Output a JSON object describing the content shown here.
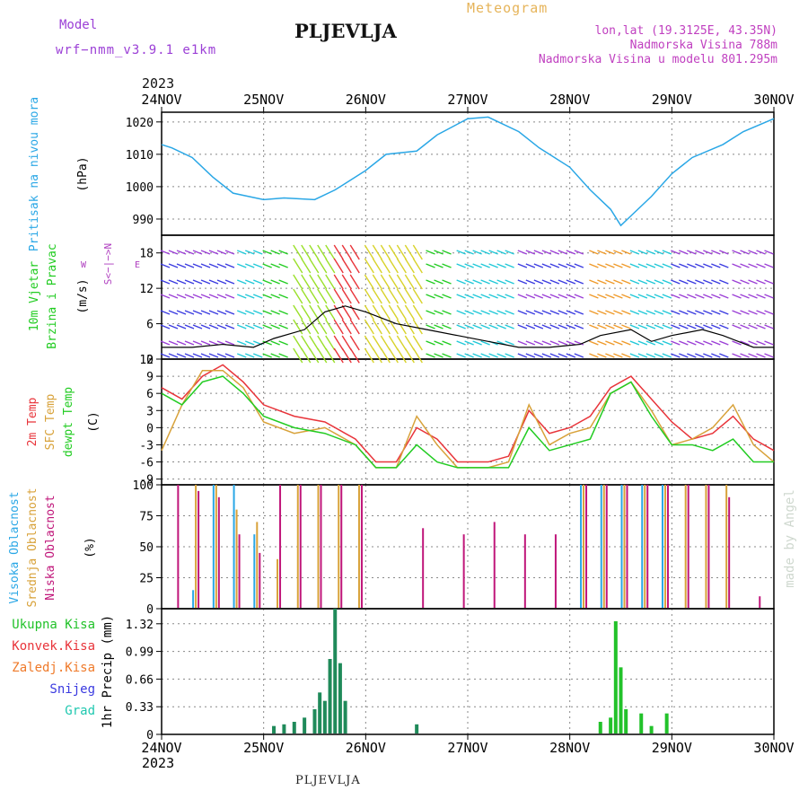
{
  "header": {
    "model_label": "Model",
    "model_run": "wrf−nmm_v3.9.1  e1km",
    "station": "PLJEVLJA",
    "product": "Meteogram",
    "lonlat": "lon,lat (19.3125E, 43.35N)",
    "elevation": "Nadmorska Visina 788m",
    "model_elevation": "Nadmorska Visina u modelu 801.295m",
    "year": "2023"
  },
  "footer": {
    "station": "PLJEVLJA",
    "year": "2023",
    "credit": "made by Angel"
  },
  "colors": {
    "pressure": "#2aa7e6",
    "temp2m": "#e8343a",
    "sfc": "#d8a23a",
    "dewpt": "#22cc22",
    "cloud_high": "#2aa7e6",
    "cloud_mid": "#d8a23a",
    "cloud_low": "#c0167a",
    "total_precip": "#22c22a",
    "conv_precip": "#e8343a",
    "frozen": "#ef7a2a",
    "snow": "#3a3ae0",
    "hail": "#20c8b0",
    "wind_speed": "#000000"
  },
  "chart_data": [
    {
      "panel": "pressure",
      "type": "line",
      "ylabel_lines": [
        "Pritisak na nivou mora",
        "(hPa)"
      ],
      "x_ticks": [
        "24NOV",
        "25NOV",
        "26NOV",
        "27NOV",
        "28NOV",
        "29NOV",
        "30NOV"
      ],
      "ylim": [
        985,
        1023
      ],
      "yticks": [
        990,
        1000,
        1010,
        1020
      ],
      "x_day": [
        0,
        0.1,
        0.3,
        0.5,
        0.7,
        1.0,
        1.2,
        1.5,
        1.7,
        2.0,
        2.2,
        2.5,
        2.7,
        3.0,
        3.2,
        3.5,
        3.7,
        4.0,
        4.2,
        4.4,
        4.5,
        4.6,
        4.8,
        5.0,
        5.2,
        5.5,
        5.7,
        6.0
      ],
      "values": [
        1013,
        1012,
        1009,
        1003,
        998,
        996,
        996.5,
        996,
        999,
        1005,
        1010,
        1011,
        1016,
        1021,
        1021.5,
        1017,
        1012,
        1006,
        999,
        993,
        988,
        991,
        997,
        1004,
        1009,
        1013,
        1017,
        1021
      ]
    },
    {
      "panel": "wind",
      "type": "line",
      "ylabel_lines": [
        "10m Vjetar",
        "Brzina i Pravac",
        "(m/s)"
      ],
      "compass": {
        "n": "N",
        "s": "S",
        "e": "E",
        "w": "W"
      },
      "ylim": [
        0,
        21
      ],
      "yticks": [
        0,
        6,
        12,
        18
      ],
      "x_day": [
        0,
        0.3,
        0.6,
        0.9,
        1.1,
        1.4,
        1.6,
        1.8,
        2.0,
        2.3,
        2.6,
        2.9,
        3.2,
        3.5,
        3.8,
        4.1,
        4.3,
        4.6,
        4.8,
        5.0,
        5.3,
        5.5,
        5.8,
        6.0
      ],
      "values": [
        2,
        2,
        2.5,
        2,
        3.5,
        5,
        8,
        9,
        8,
        6,
        5,
        4,
        3,
        2,
        2,
        2.5,
        4,
        5,
        3,
        4,
        5,
        4,
        2,
        2
      ]
    },
    {
      "panel": "temperature",
      "type": "line",
      "ylabel_lines": [
        "2m Temp",
        "SFC Temp",
        "dewpt Temp",
        "(C)"
      ],
      "ylim": [
        -10,
        12
      ],
      "yticks": [
        -9,
        -6,
        -3,
        0,
        3,
        6,
        9,
        12
      ],
      "x_day": [
        0,
        0.2,
        0.4,
        0.6,
        0.8,
        1.0,
        1.3,
        1.6,
        1.9,
        2.1,
        2.3,
        2.5,
        2.7,
        2.9,
        3.2,
        3.4,
        3.6,
        3.8,
        4.0,
        4.2,
        4.4,
        4.6,
        4.8,
        5.0,
        5.2,
        5.4,
        5.6,
        5.8,
        6.0
      ],
      "series": [
        {
          "name": "2m",
          "values": [
            7,
            5,
            9,
            11,
            8,
            4,
            2,
            1,
            -2,
            -6,
            -6,
            0,
            -2,
            -6,
            -6,
            -5,
            3,
            -1,
            0,
            2,
            7,
            9,
            5,
            1,
            -2,
            -1,
            2,
            -2,
            -4
          ]
        },
        {
          "name": "SFC",
          "values": [
            -4,
            4,
            10,
            10,
            7,
            1,
            -1,
            0,
            -3,
            -7,
            -7,
            2,
            -3,
            -7,
            -7,
            -6,
            4,
            -3,
            -1,
            0,
            6,
            8,
            3,
            -3,
            -2,
            0,
            4,
            -3,
            -6
          ]
        },
        {
          "name": "dewpt",
          "values": [
            6,
            4,
            8,
            9,
            6,
            2,
            0,
            -1,
            -3,
            -7,
            -7,
            -3,
            -6,
            -7,
            -7,
            -7,
            0,
            -4,
            -3,
            -2,
            6,
            8,
            2,
            -3,
            -3,
            -4,
            -2,
            -6,
            -6
          ]
        }
      ]
    },
    {
      "panel": "clouds",
      "type": "bar",
      "ylabel_lines": [
        "Visoka Oblacnost",
        "Srednja Oblacnost",
        "Niska Oblacnost",
        "(%)"
      ],
      "ylim": [
        0,
        100
      ],
      "yticks": [
        0,
        25,
        50,
        75,
        100
      ],
      "x_day": [
        0.1,
        0.3,
        0.5,
        0.7,
        0.9,
        1.1,
        1.3,
        1.5,
        1.7,
        1.9,
        2.5,
        2.9,
        3.2,
        3.5,
        3.8,
        4.1,
        4.3,
        4.5,
        4.7,
        4.9,
        5.1,
        5.3,
        5.5,
        5.8
      ],
      "series": [
        {
          "name": "high",
          "values": [
            0,
            15,
            100,
            100,
            60,
            0,
            0,
            0,
            0,
            0,
            0,
            0,
            0,
            0,
            0,
            100,
            100,
            100,
            100,
            100,
            0,
            0,
            0,
            0
          ]
        },
        {
          "name": "mid",
          "values": [
            0,
            100,
            100,
            80,
            70,
            40,
            100,
            100,
            100,
            100,
            0,
            0,
            0,
            0,
            0,
            100,
            100,
            100,
            100,
            100,
            100,
            100,
            100,
            0
          ]
        },
        {
          "name": "low",
          "values": [
            100,
            95,
            90,
            60,
            45,
            100,
            100,
            100,
            100,
            100,
            65,
            60,
            70,
            60,
            60,
            100,
            100,
            100,
            100,
            100,
            100,
            100,
            90,
            10
          ]
        }
      ]
    },
    {
      "panel": "precip",
      "type": "bar",
      "ylabel_lines": [
        "1hr Precip (mm)"
      ],
      "legend": [
        "Ukupna Kisa",
        "Konvek.Kisa",
        "Zaledj.Kisa",
        "Snijeg",
        "Grad"
      ],
      "ylim": [
        0,
        1.5
      ],
      "yticks": [
        0,
        0.33,
        0.66,
        0.99,
        1.32
      ],
      "x_day": [
        1.1,
        1.2,
        1.3,
        1.4,
        1.5,
        1.55,
        1.6,
        1.65,
        1.7,
        1.75,
        1.8,
        2.5,
        4.3,
        4.4,
        4.45,
        4.5,
        4.55,
        4.7,
        4.8,
        4.95
      ],
      "values": [
        0.1,
        0.12,
        0.15,
        0.2,
        0.3,
        0.5,
        0.4,
        0.9,
        1.5,
        0.85,
        0.4,
        0.12,
        0.15,
        0.2,
        1.35,
        0.8,
        0.3,
        0.25,
        0.1,
        0.25
      ]
    }
  ]
}
